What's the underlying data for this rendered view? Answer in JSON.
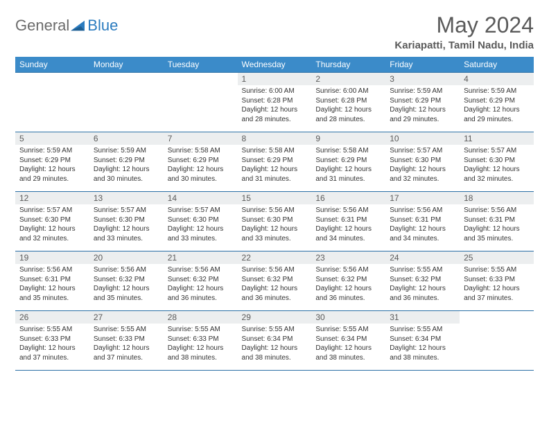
{
  "brand": {
    "part1": "General",
    "part2": "Blue",
    "icon_color": "#2a7bbf"
  },
  "header": {
    "title": "May 2024",
    "location": "Kariapatti, Tamil Nadu, India"
  },
  "colors": {
    "header_bg": "#3b8bc9",
    "header_text": "#ffffff",
    "rule": "#2a6fa5",
    "daynum_bg": "#eceeef",
    "text": "#333333",
    "muted": "#5a5a5a"
  },
  "dow": [
    "Sunday",
    "Monday",
    "Tuesday",
    "Wednesday",
    "Thursday",
    "Friday",
    "Saturday"
  ],
  "weeks": [
    [
      {
        "n": "",
        "sr": "",
        "ss": "",
        "dl": ""
      },
      {
        "n": "",
        "sr": "",
        "ss": "",
        "dl": ""
      },
      {
        "n": "",
        "sr": "",
        "ss": "",
        "dl": ""
      },
      {
        "n": "1",
        "sr": "6:00 AM",
        "ss": "6:28 PM",
        "dl": "12 hours and 28 minutes."
      },
      {
        "n": "2",
        "sr": "6:00 AM",
        "ss": "6:28 PM",
        "dl": "12 hours and 28 minutes."
      },
      {
        "n": "3",
        "sr": "5:59 AM",
        "ss": "6:29 PM",
        "dl": "12 hours and 29 minutes."
      },
      {
        "n": "4",
        "sr": "5:59 AM",
        "ss": "6:29 PM",
        "dl": "12 hours and 29 minutes."
      }
    ],
    [
      {
        "n": "5",
        "sr": "5:59 AM",
        "ss": "6:29 PM",
        "dl": "12 hours and 29 minutes."
      },
      {
        "n": "6",
        "sr": "5:59 AM",
        "ss": "6:29 PM",
        "dl": "12 hours and 30 minutes."
      },
      {
        "n": "7",
        "sr": "5:58 AM",
        "ss": "6:29 PM",
        "dl": "12 hours and 30 minutes."
      },
      {
        "n": "8",
        "sr": "5:58 AM",
        "ss": "6:29 PM",
        "dl": "12 hours and 31 minutes."
      },
      {
        "n": "9",
        "sr": "5:58 AM",
        "ss": "6:29 PM",
        "dl": "12 hours and 31 minutes."
      },
      {
        "n": "10",
        "sr": "5:57 AM",
        "ss": "6:30 PM",
        "dl": "12 hours and 32 minutes."
      },
      {
        "n": "11",
        "sr": "5:57 AM",
        "ss": "6:30 PM",
        "dl": "12 hours and 32 minutes."
      }
    ],
    [
      {
        "n": "12",
        "sr": "5:57 AM",
        "ss": "6:30 PM",
        "dl": "12 hours and 32 minutes."
      },
      {
        "n": "13",
        "sr": "5:57 AM",
        "ss": "6:30 PM",
        "dl": "12 hours and 33 minutes."
      },
      {
        "n": "14",
        "sr": "5:57 AM",
        "ss": "6:30 PM",
        "dl": "12 hours and 33 minutes."
      },
      {
        "n": "15",
        "sr": "5:56 AM",
        "ss": "6:30 PM",
        "dl": "12 hours and 33 minutes."
      },
      {
        "n": "16",
        "sr": "5:56 AM",
        "ss": "6:31 PM",
        "dl": "12 hours and 34 minutes."
      },
      {
        "n": "17",
        "sr": "5:56 AM",
        "ss": "6:31 PM",
        "dl": "12 hours and 34 minutes."
      },
      {
        "n": "18",
        "sr": "5:56 AM",
        "ss": "6:31 PM",
        "dl": "12 hours and 35 minutes."
      }
    ],
    [
      {
        "n": "19",
        "sr": "5:56 AM",
        "ss": "6:31 PM",
        "dl": "12 hours and 35 minutes."
      },
      {
        "n": "20",
        "sr": "5:56 AM",
        "ss": "6:32 PM",
        "dl": "12 hours and 35 minutes."
      },
      {
        "n": "21",
        "sr": "5:56 AM",
        "ss": "6:32 PM",
        "dl": "12 hours and 36 minutes."
      },
      {
        "n": "22",
        "sr": "5:56 AM",
        "ss": "6:32 PM",
        "dl": "12 hours and 36 minutes."
      },
      {
        "n": "23",
        "sr": "5:56 AM",
        "ss": "6:32 PM",
        "dl": "12 hours and 36 minutes."
      },
      {
        "n": "24",
        "sr": "5:55 AM",
        "ss": "6:32 PM",
        "dl": "12 hours and 36 minutes."
      },
      {
        "n": "25",
        "sr": "5:55 AM",
        "ss": "6:33 PM",
        "dl": "12 hours and 37 minutes."
      }
    ],
    [
      {
        "n": "26",
        "sr": "5:55 AM",
        "ss": "6:33 PM",
        "dl": "12 hours and 37 minutes."
      },
      {
        "n": "27",
        "sr": "5:55 AM",
        "ss": "6:33 PM",
        "dl": "12 hours and 37 minutes."
      },
      {
        "n": "28",
        "sr": "5:55 AM",
        "ss": "6:33 PM",
        "dl": "12 hours and 38 minutes."
      },
      {
        "n": "29",
        "sr": "5:55 AM",
        "ss": "6:34 PM",
        "dl": "12 hours and 38 minutes."
      },
      {
        "n": "30",
        "sr": "5:55 AM",
        "ss": "6:34 PM",
        "dl": "12 hours and 38 minutes."
      },
      {
        "n": "31",
        "sr": "5:55 AM",
        "ss": "6:34 PM",
        "dl": "12 hours and 38 minutes."
      },
      {
        "n": "",
        "sr": "",
        "ss": "",
        "dl": ""
      }
    ]
  ],
  "labels": {
    "sunrise": "Sunrise:",
    "sunset": "Sunset:",
    "daylight": "Daylight:"
  }
}
